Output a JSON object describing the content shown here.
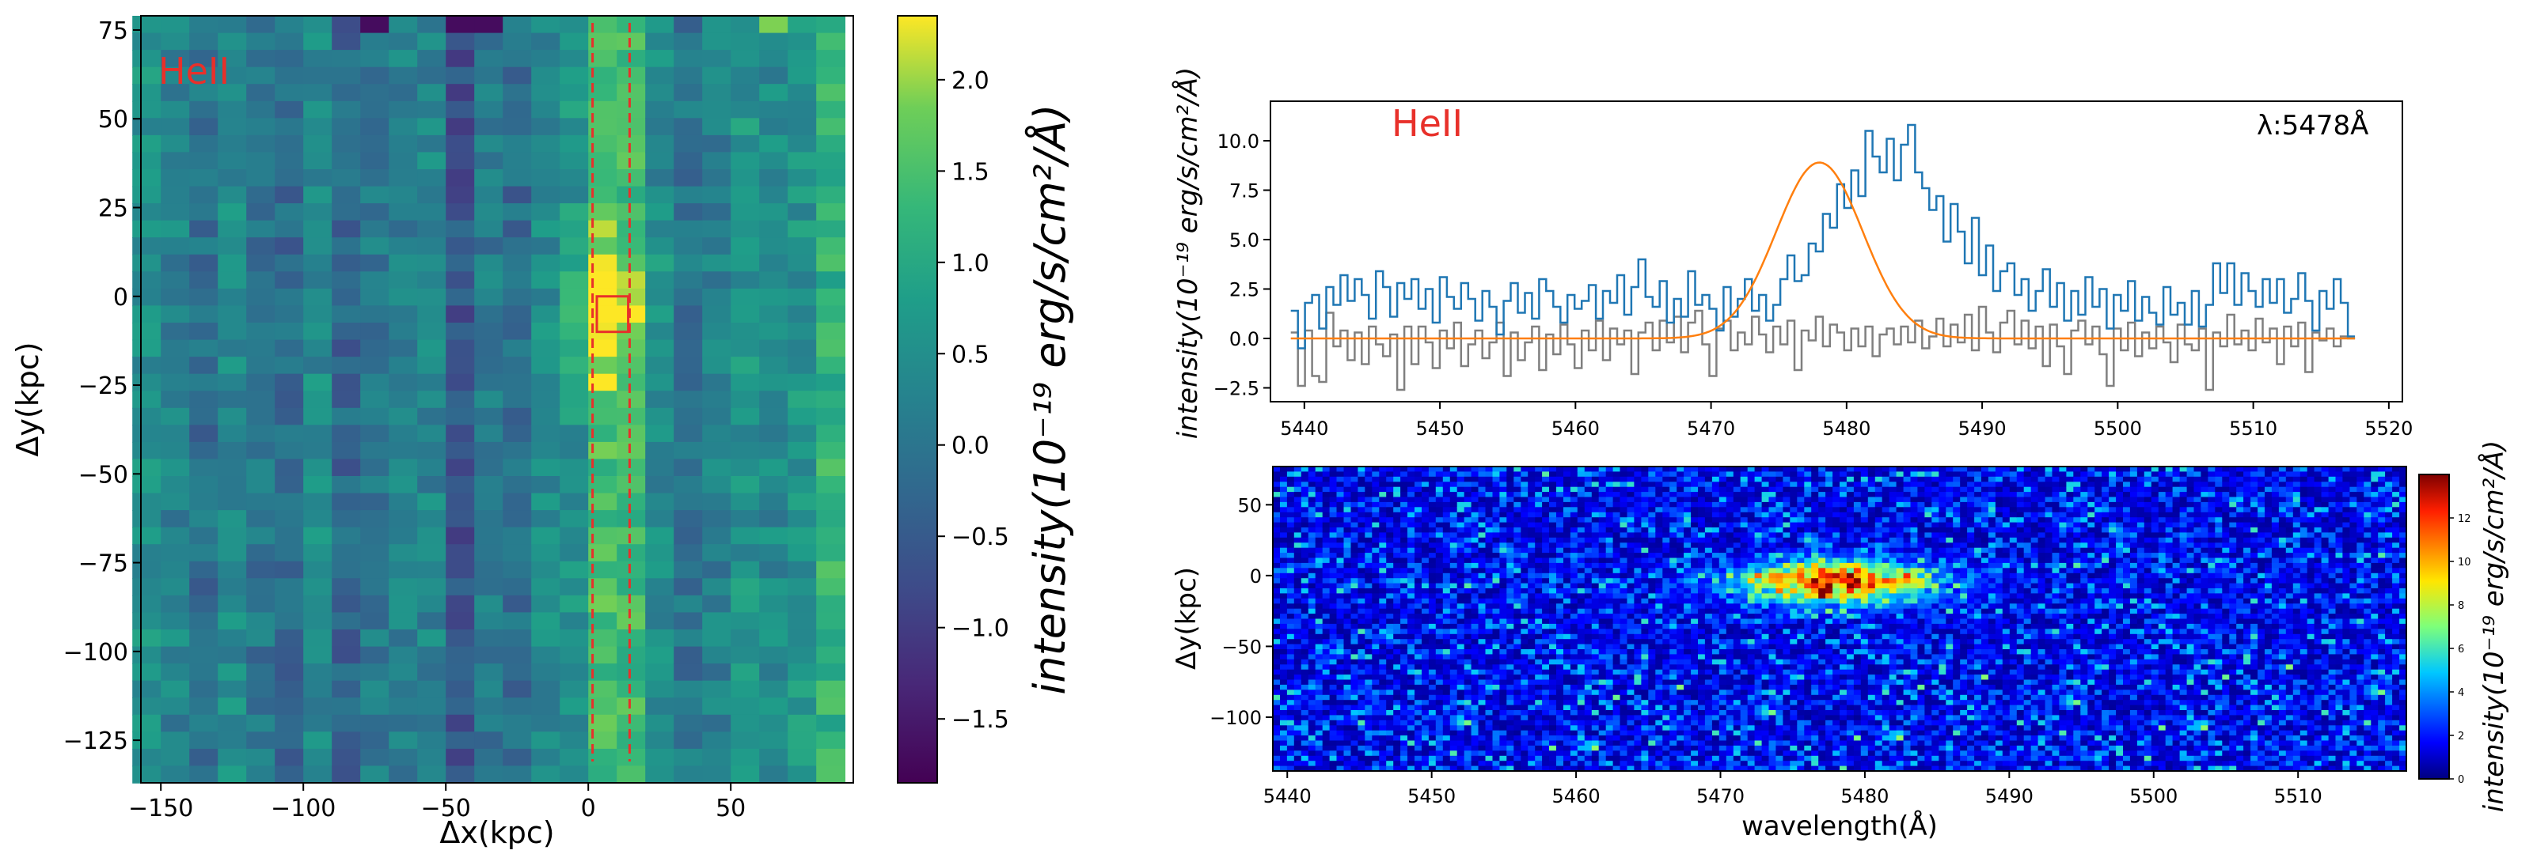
{
  "colors": {
    "red_annotation": "#e8302a",
    "observed_line": "#1f77b4",
    "fit_line": "#ff7f0e",
    "residual_line": "#7f7f7f",
    "left_colormap": "viridis",
    "bottom_colormap": "jet"
  },
  "chart_data": [
    {
      "id": "left-map",
      "type": "heatmap",
      "colormap": "viridis",
      "xlabel": "Δx(kpc)",
      "ylabel": "Δy(kpc)",
      "xlim": [
        -157,
        93
      ],
      "ylim": [
        -137,
        79
      ],
      "xticks": [
        -150,
        -100,
        -50,
        0,
        50
      ],
      "xtick_labels": [
        "−150",
        "−100",
        "−50",
        "0",
        "50"
      ],
      "yticks": [
        75,
        50,
        25,
        0,
        -25,
        -50,
        -75,
        -100,
        -125
      ],
      "ytick_labels": [
        "75",
        "50",
        "25",
        "0",
        "−25",
        "−50",
        "−75",
        "−100",
        "−125"
      ],
      "annotation": "HeII",
      "slit_lines_x": [
        1.5,
        14.5
      ],
      "aperture_box": {
        "x": [
          3,
          14
        ],
        "y": [
          -10,
          0
        ]
      },
      "column_profile": {
        "x_center": [
          -155,
          -145,
          -135,
          -125,
          -115,
          -105,
          -95,
          -85,
          -75,
          -65,
          -55,
          -45,
          -35,
          -25,
          -15,
          -5,
          5,
          15,
          25,
          35,
          45,
          55,
          65,
          75,
          85
        ],
        "mean_value": [
          0.5,
          0.3,
          -0.1,
          0.4,
          0.0,
          -0.2,
          0.4,
          -0.3,
          0.1,
          0.2,
          0.3,
          -0.6,
          0.1,
          -0.2,
          0.4,
          0.6,
          1.0,
          0.9,
          0.4,
          0.0,
          0.2,
          0.6,
          0.4,
          0.6,
          1.2
        ]
      },
      "peak": {
        "x": 8,
        "y": -5,
        "value": 2.3
      },
      "colorbar": {
        "range": [
          -1.85,
          2.35
        ],
        "ticks": [
          2.0,
          1.5,
          1.0,
          0.5,
          0.0,
          -0.5,
          -1.0,
          -1.5
        ],
        "tick_labels": [
          "2.0",
          "1.5",
          "1.0",
          "0.5",
          "0.0",
          "−0.5",
          "−1.0",
          "−1.5"
        ],
        "label": "intensity(10⁻¹⁹ erg/s/cm²/Å)"
      }
    },
    {
      "id": "spectrum",
      "type": "line",
      "step": true,
      "xlim": [
        5437.5,
        5521
      ],
      "ylim": [
        -3.2,
        12.0
      ],
      "xticks": [
        5440,
        5450,
        5460,
        5470,
        5480,
        5490,
        5500,
        5510,
        5520
      ],
      "xtick_labels": [
        "5440",
        "5450",
        "5460",
        "5470",
        "5480",
        "5490",
        "5500",
        "5510",
        "5520"
      ],
      "yticks": [
        10.0,
        7.5,
        5.0,
        2.5,
        0.0,
        -2.5
      ],
      "ytick_labels": [
        "10.0",
        "7.5",
        "5.0",
        "2.5",
        "0.0",
        "−2.5"
      ],
      "ylabel": "intensity(10⁻¹⁹ erg/s/cm²/Å)",
      "annotation_left": "HeII",
      "annotation_right": "λ:5478Å",
      "x_range": [
        5439,
        5517.5
      ],
      "series": [
        {
          "id": "observed",
          "color": "#1f77b4",
          "values": [
            1.4,
            -0.5,
            1.8,
            2.2,
            0.5,
            2.6,
            1.7,
            3.2,
            1.9,
            3.0,
            2.2,
            1.0,
            3.4,
            2.6,
            1.1,
            2.8,
            2.0,
            3.0,
            1.5,
            2.5,
            0.8,
            3.1,
            2.1,
            1.5,
            2.8,
            2.0,
            0.9,
            2.4,
            1.6,
            0.2,
            1.9,
            2.8,
            1.3,
            2.3,
            1.0,
            3.0,
            2.4,
            1.6,
            0.8,
            2.2,
            1.5,
            1.9,
            2.7,
            1.0,
            2.4,
            1.8,
            3.2,
            1.2,
            2.6,
            4.0,
            2.1,
            1.6,
            2.9,
            0.8,
            2.0,
            1.1,
            3.4,
            1.7,
            2.2,
            1.5,
            0.4,
            2.6,
            1.1,
            2.0,
            3.0,
            1.4,
            2.2,
            0.9,
            1.7,
            3.0,
            4.2,
            2.9,
            3.2,
            4.8,
            4.4,
            6.3,
            5.6,
            7.8,
            6.6,
            8.5,
            7.2,
            10.5,
            9.2,
            8.4,
            10.1,
            8.0,
            9.8,
            10.8,
            8.4,
            7.6,
            6.5,
            7.2,
            4.9,
            6.8,
            5.4,
            3.8,
            6.1,
            3.2,
            4.7,
            2.4,
            3.4,
            3.8,
            2.2,
            3.0,
            1.4,
            2.4,
            3.5,
            1.6,
            2.8,
            0.9,
            2.4,
            1.2,
            3.1,
            1.6,
            2.5,
            0.5,
            2.2,
            1.4,
            2.9,
            0.9,
            2.1,
            1.3,
            0.7,
            2.6,
            1.2,
            1.8,
            0.7,
            2.4,
            0.6,
            1.7,
            3.8,
            2.3,
            3.8,
            1.7,
            3.3,
            2.4,
            1.6,
            3.0,
            1.8,
            3.0,
            1.3,
            2.0,
            3.3,
            1.9,
            0.4,
            2.4,
            1.5,
            3.0,
            1.8,
            0.1
          ]
        },
        {
          "id": "residual",
          "color": "#7f7f7f",
          "values": [
            0.3,
            -2.4,
            0.4,
            -1.9,
            -2.2,
            1.3,
            -0.4,
            0.4,
            -1.1,
            0.3,
            -1.3,
            0.6,
            -0.3,
            -0.9,
            0.2,
            -2.6,
            0.6,
            -1.3,
            0.6,
            -0.2,
            -1.5,
            0.4,
            -0.5,
            0.8,
            -1.4,
            -0.3,
            0.4,
            -1.0,
            -0.2,
            0.8,
            -1.9,
            0.3,
            -1.1,
            -0.2,
            0.6,
            -1.6,
            0.2,
            -0.8,
            0.7,
            -0.3,
            -1.5,
            0.4,
            -0.6,
            0.9,
            -1.1,
            0.5,
            -0.3,
            0.4,
            -1.8,
            0.3,
            0.8,
            -0.6,
            0.9,
            -0.2,
            1.1,
            -0.7,
            0.8,
            1.4,
            -0.3,
            -1.9,
            0.5,
            0.9,
            -0.6,
            0.3,
            -0.3,
            1.1,
            0.2,
            -0.7,
            0.6,
            -0.3,
            0.9,
            -1.6,
            0.4,
            -0.1,
            1.1,
            -0.4,
            0.7,
            0.3,
            -0.6,
            0.5,
            -0.4,
            0.6,
            -0.9,
            0.2,
            0.5,
            -0.3,
            0.6,
            -0.2,
            0.9,
            -0.5,
            0.1,
            1.0,
            -0.4,
            0.7,
            -0.2,
            1.2,
            -0.6,
            1.6,
            0.3,
            -0.7,
            0.8,
            1.4,
            -0.3,
            0.9,
            -0.5,
            0.6,
            -1.4,
            0.7,
            -0.4,
            -1.8,
            0.4,
            0.9,
            -0.3,
            0.6,
            -0.8,
            -2.4,
            0.5,
            -0.6,
            0.8,
            -0.9,
            0.3,
            -0.5,
            0.6,
            -0.2,
            -1.2,
            0.7,
            -0.3,
            -0.6,
            0.5,
            -2.6,
            0.3,
            -0.4,
            1.2,
            -0.3,
            0.4,
            -0.6,
            1.0,
            -0.2,
            0.5,
            -1.3,
            0.6,
            -0.4,
            0.8,
            -1.7,
            0.3,
            -0.1,
            0.5,
            -0.4,
            0.1,
            0.0
          ]
        },
        {
          "id": "gaussian-fit",
          "color": "#ff7f0e",
          "model": {
            "amplitude": 8.9,
            "center": 5478,
            "sigma": 3.2,
            "x_start": 5439,
            "x_end": 5517.5
          }
        }
      ]
    },
    {
      "id": "bottom-map",
      "type": "heatmap",
      "colormap": "jet",
      "xlabel": "wavelength(Å)",
      "ylabel": "Δy(kpc)",
      "xlim": [
        5439,
        5517.5
      ],
      "ylim": [
        -138,
        77
      ],
      "xticks": [
        5440,
        5450,
        5460,
        5470,
        5480,
        5490,
        5500,
        5510
      ],
      "xtick_labels": [
        "5440",
        "5450",
        "5460",
        "5470",
        "5480",
        "5490",
        "5500",
        "5510"
      ],
      "yticks": [
        50,
        0,
        -50,
        -100
      ],
      "ytick_labels": [
        "50",
        "0",
        "−50",
        "−100"
      ],
      "emission": {
        "x_center": 5478,
        "x_sigma": 4.5,
        "y_center": -5,
        "y_sigma": 10,
        "peak": 13
      },
      "noise_level": 2.3,
      "colorbar": {
        "range": [
          0,
          14
        ],
        "ticks": [
          12,
          10,
          8,
          6,
          4,
          2,
          0
        ],
        "tick_labels": [
          "12",
          "10",
          "8",
          "6",
          "4",
          "2",
          "0"
        ],
        "label": "intensity(10⁻¹⁹ erg/s/cm²/Å)"
      }
    }
  ]
}
